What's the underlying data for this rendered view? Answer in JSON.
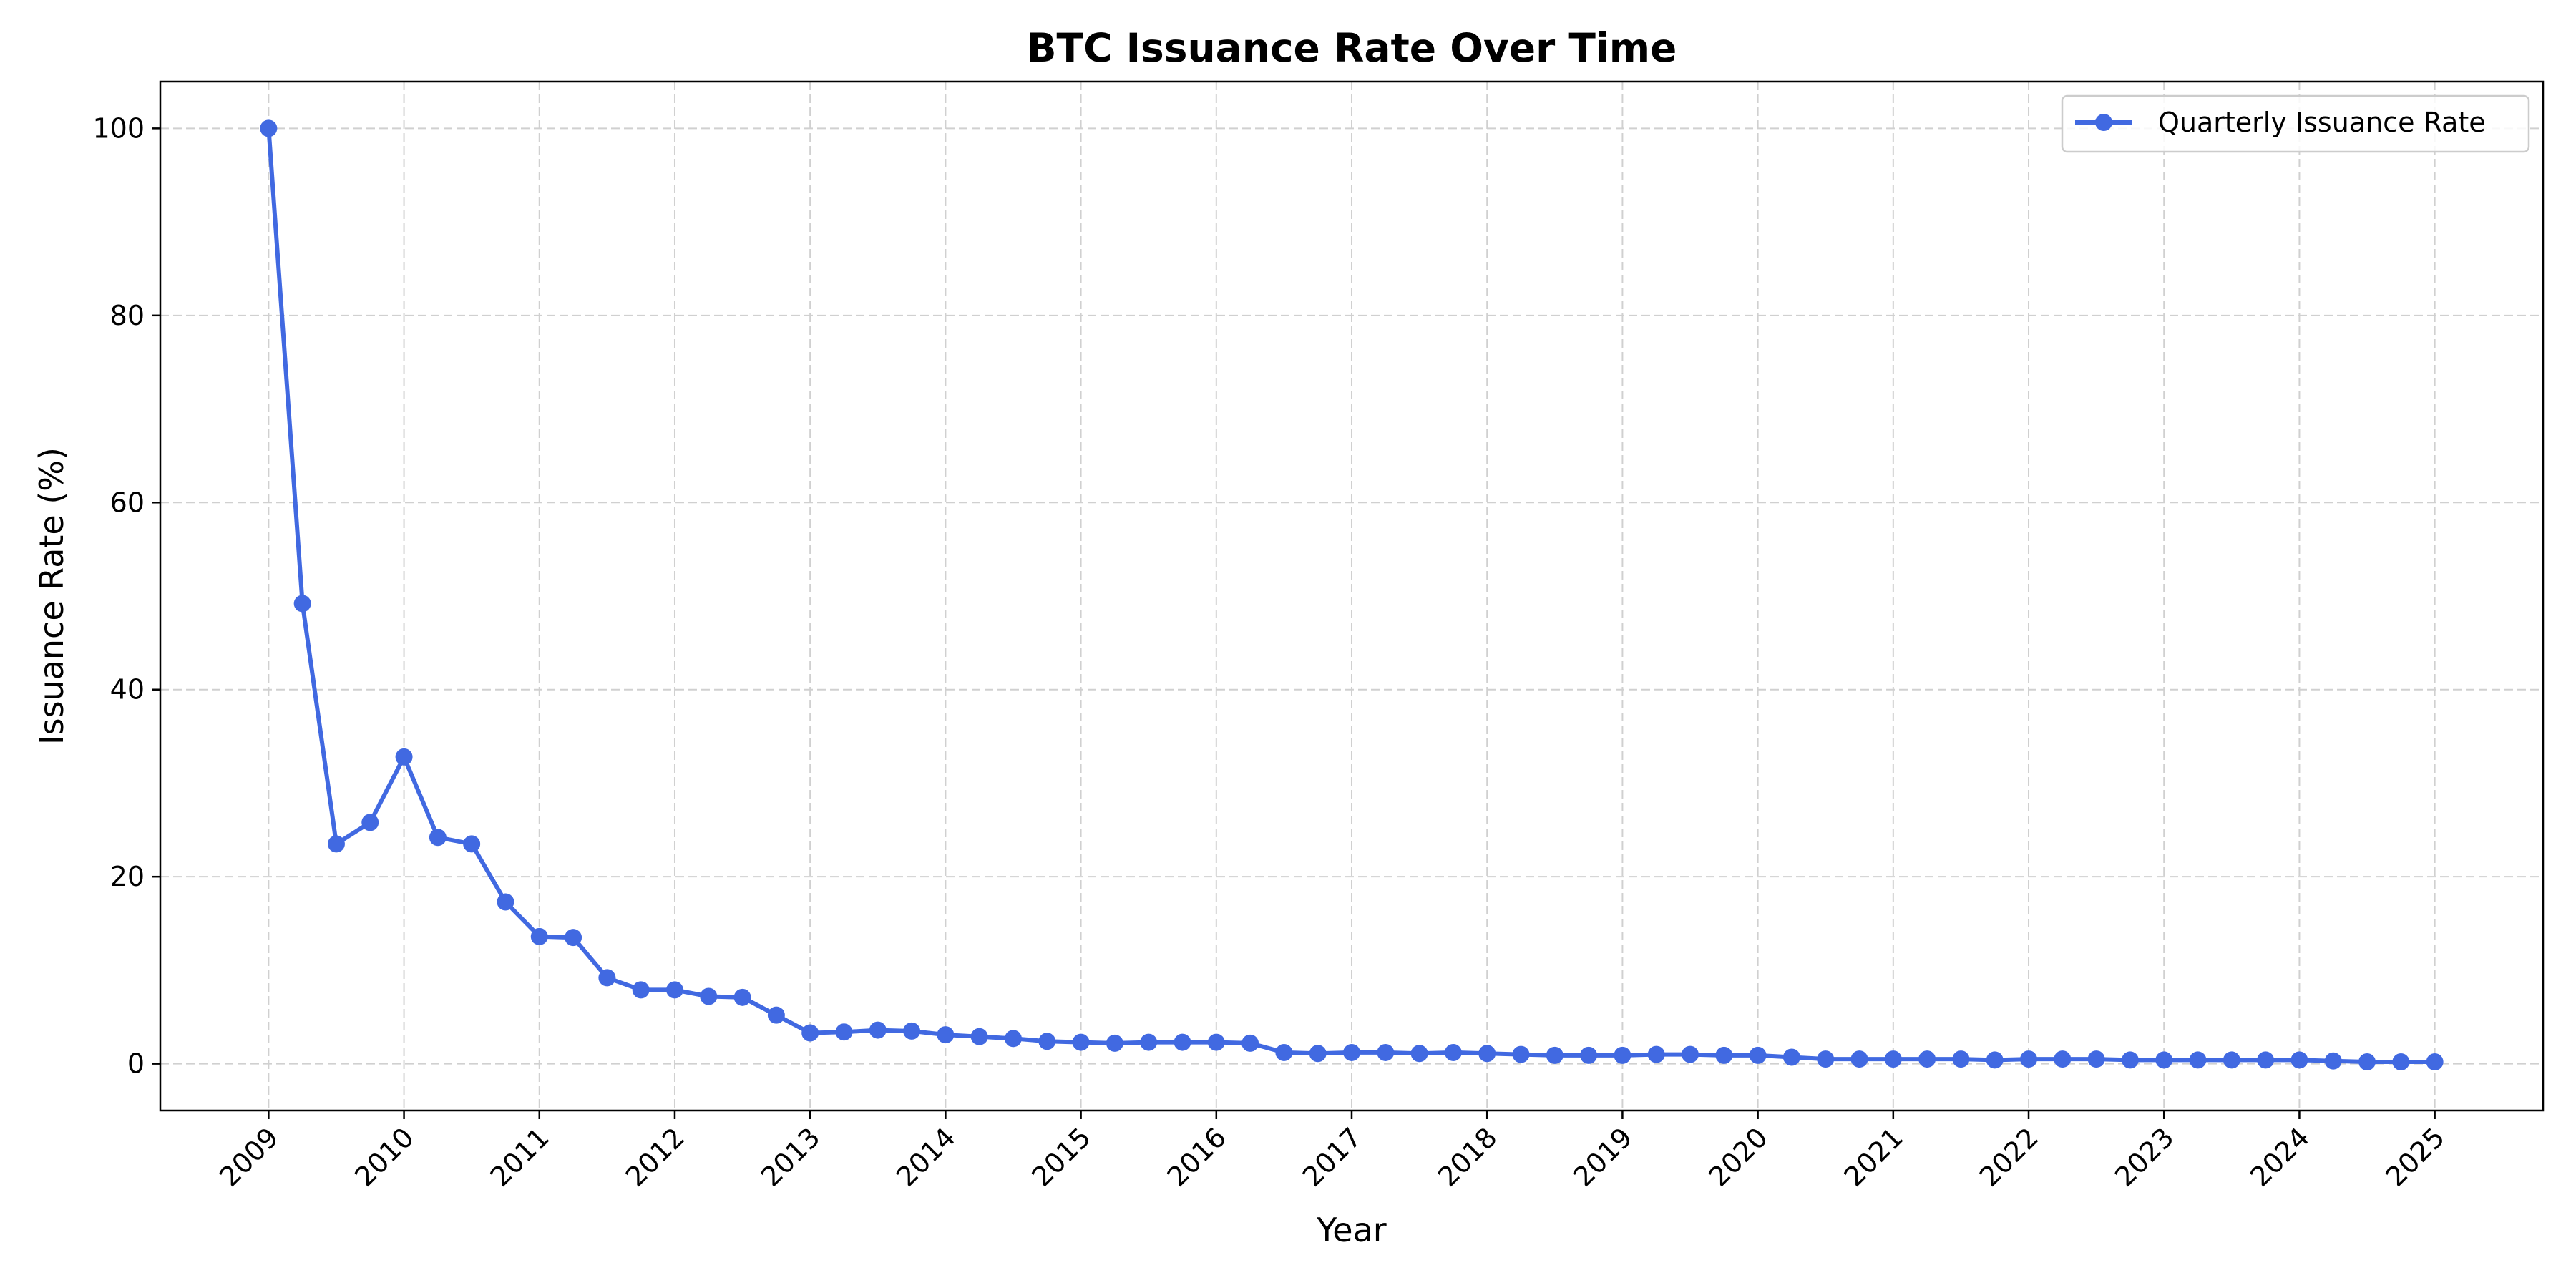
{
  "chart_data": {
    "type": "line",
    "title": "BTC Issuance Rate Over Time",
    "xlabel": "Year",
    "ylabel": "Issuance Rate (%)",
    "xlim": [
      2008.2,
      2025.8
    ],
    "ylim": [
      -5,
      105
    ],
    "x_ticks": [
      "2009",
      "2010",
      "2011",
      "2012",
      "2013",
      "2014",
      "2015",
      "2016",
      "2017",
      "2018",
      "2019",
      "2020",
      "2021",
      "2022",
      "2023",
      "2024",
      "2025"
    ],
    "y_ticks": [
      0,
      20,
      40,
      60,
      80,
      100
    ],
    "grid": true,
    "legend_position": "top-right",
    "color": "#4169e1",
    "series": [
      {
        "name": "Quarterly Issuance Rate",
        "x": [
          2009.0,
          2009.25,
          2009.5,
          2009.75,
          2010.0,
          2010.25,
          2010.5,
          2010.75,
          2011.0,
          2011.25,
          2011.5,
          2011.75,
          2012.0,
          2012.25,
          2012.5,
          2012.75,
          2013.0,
          2013.25,
          2013.5,
          2013.75,
          2014.0,
          2014.25,
          2014.5,
          2014.75,
          2015.0,
          2015.25,
          2015.5,
          2015.75,
          2016.0,
          2016.25,
          2016.5,
          2016.75,
          2017.0,
          2017.25,
          2017.5,
          2017.75,
          2018.0,
          2018.25,
          2018.5,
          2018.75,
          2019.0,
          2019.25,
          2019.5,
          2019.75,
          2020.0,
          2020.25,
          2020.5,
          2020.75,
          2021.0,
          2021.25,
          2021.5,
          2021.75,
          2022.0,
          2022.25,
          2022.5,
          2022.75,
          2023.0,
          2023.25,
          2023.5,
          2023.75,
          2024.0,
          2024.25,
          2024.5,
          2024.75,
          2025.0
        ],
        "y": [
          100,
          49.2,
          23.5,
          25.8,
          32.8,
          24.2,
          23.5,
          17.3,
          13.6,
          13.5,
          9.2,
          7.9,
          7.9,
          7.2,
          7.1,
          5.2,
          3.3,
          3.4,
          3.6,
          3.5,
          3.1,
          2.9,
          2.7,
          2.4,
          2.3,
          2.2,
          2.3,
          2.3,
          2.3,
          2.2,
          1.2,
          1.1,
          1.2,
          1.2,
          1.1,
          1.2,
          1.1,
          1.0,
          0.9,
          0.9,
          0.9,
          1.0,
          1.0,
          0.9,
          0.9,
          0.7,
          0.5,
          0.5,
          0.5,
          0.5,
          0.5,
          0.4,
          0.5,
          0.5,
          0.5,
          0.4,
          0.4,
          0.4,
          0.4,
          0.4,
          0.4,
          0.3,
          0.2,
          0.2,
          0.2
        ]
      }
    ]
  }
}
